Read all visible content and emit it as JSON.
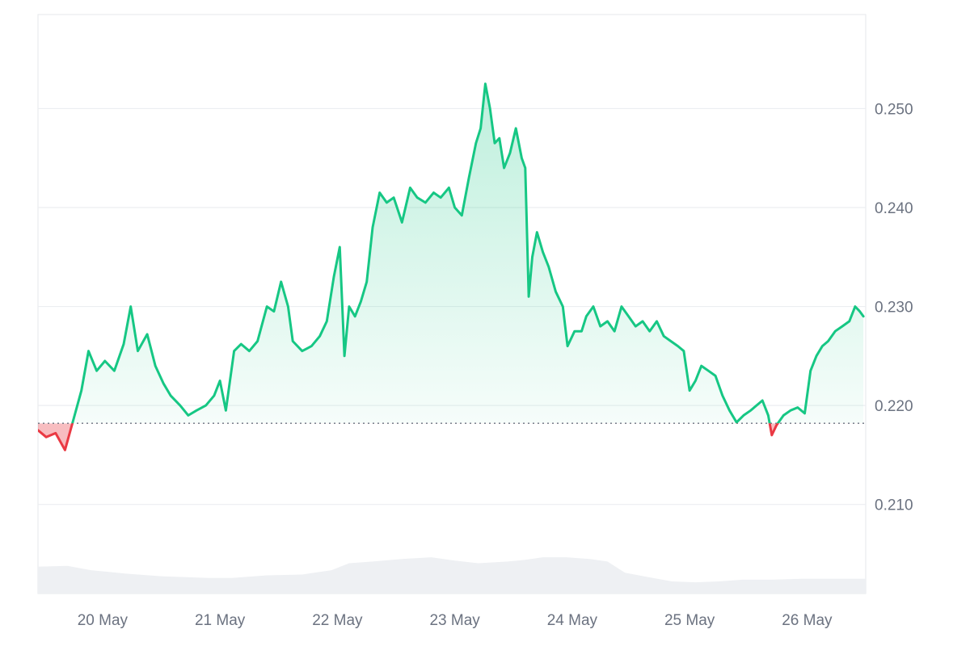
{
  "chart_data": {
    "type": "area",
    "title": "",
    "xlabel": "",
    "ylabel": "",
    "x_ticks": [
      "20 May",
      "21 May",
      "22 May",
      "23 May",
      "24 May",
      "25 May",
      "26 May"
    ],
    "y_ticks": [
      "0.210",
      "0.220",
      "0.230",
      "0.240",
      "0.250"
    ],
    "y_tick_values": [
      0.21,
      0.22,
      0.23,
      0.24,
      0.25
    ],
    "ylim": [
      0.201,
      0.2595
    ],
    "xlim_days": [
      19.45,
      26.5
    ],
    "grid": true,
    "y_axis_position": "right",
    "baseline": 0.2182,
    "colors": {
      "up_line": "#16c784",
      "up_fill": "#16c784",
      "down_line": "#ea3943",
      "down_fill": "#ea3943",
      "baseline": "#6b7280",
      "grid": "#eceef1",
      "frame": "#e5e7eb",
      "volume": "#eef0f3"
    },
    "series": [
      {
        "values": [
          [
            19.45,
            0.2175
          ],
          [
            19.52,
            0.2168
          ],
          [
            19.6,
            0.2172
          ],
          [
            19.68,
            0.2155
          ],
          [
            19.75,
            0.2185
          ],
          [
            19.82,
            0.2215
          ],
          [
            19.88,
            0.2255
          ],
          [
            19.95,
            0.2235
          ],
          [
            20.02,
            0.2245
          ],
          [
            20.1,
            0.2235
          ],
          [
            20.18,
            0.2262
          ],
          [
            20.24,
            0.23
          ],
          [
            20.3,
            0.2255
          ],
          [
            20.38,
            0.2272
          ],
          [
            20.45,
            0.224
          ],
          [
            20.52,
            0.2222
          ],
          [
            20.58,
            0.221
          ],
          [
            20.66,
            0.22
          ],
          [
            20.73,
            0.219
          ],
          [
            20.8,
            0.2195
          ],
          [
            20.88,
            0.22
          ],
          [
            20.95,
            0.221
          ],
          [
            21.0,
            0.2225
          ],
          [
            21.05,
            0.2195
          ],
          [
            21.12,
            0.2255
          ],
          [
            21.18,
            0.2262
          ],
          [
            21.25,
            0.2255
          ],
          [
            21.32,
            0.2265
          ],
          [
            21.4,
            0.23
          ],
          [
            21.46,
            0.2295
          ],
          [
            21.52,
            0.2325
          ],
          [
            21.58,
            0.23
          ],
          [
            21.62,
            0.2265
          ],
          [
            21.7,
            0.2255
          ],
          [
            21.78,
            0.226
          ],
          [
            21.85,
            0.227
          ],
          [
            21.91,
            0.2285
          ],
          [
            21.97,
            0.233
          ],
          [
            22.02,
            0.236
          ],
          [
            22.06,
            0.225
          ],
          [
            22.1,
            0.23
          ],
          [
            22.15,
            0.229
          ],
          [
            22.2,
            0.2305
          ],
          [
            22.25,
            0.2325
          ],
          [
            22.3,
            0.238
          ],
          [
            22.36,
            0.2415
          ],
          [
            22.42,
            0.2405
          ],
          [
            22.48,
            0.241
          ],
          [
            22.55,
            0.2385
          ],
          [
            22.62,
            0.242
          ],
          [
            22.68,
            0.241
          ],
          [
            22.75,
            0.2405
          ],
          [
            22.82,
            0.2415
          ],
          [
            22.88,
            0.241
          ],
          [
            22.95,
            0.242
          ],
          [
            23.0,
            0.24
          ],
          [
            23.06,
            0.2392
          ],
          [
            23.12,
            0.243
          ],
          [
            23.18,
            0.2465
          ],
          [
            23.22,
            0.248
          ],
          [
            23.26,
            0.2525
          ],
          [
            23.3,
            0.25
          ],
          [
            23.34,
            0.2465
          ],
          [
            23.38,
            0.247
          ],
          [
            23.42,
            0.244
          ],
          [
            23.47,
            0.2455
          ],
          [
            23.52,
            0.248
          ],
          [
            23.57,
            0.245
          ],
          [
            23.6,
            0.244
          ],
          [
            23.63,
            0.231
          ],
          [
            23.66,
            0.235
          ],
          [
            23.7,
            0.2375
          ],
          [
            23.75,
            0.2355
          ],
          [
            23.8,
            0.234
          ],
          [
            23.86,
            0.2315
          ],
          [
            23.92,
            0.23
          ],
          [
            23.96,
            0.226
          ],
          [
            24.02,
            0.2275
          ],
          [
            24.08,
            0.2275
          ],
          [
            24.12,
            0.229
          ],
          [
            24.18,
            0.23
          ],
          [
            24.24,
            0.228
          ],
          [
            24.3,
            0.2285
          ],
          [
            24.36,
            0.2275
          ],
          [
            24.42,
            0.23
          ],
          [
            24.48,
            0.229
          ],
          [
            24.54,
            0.228
          ],
          [
            24.6,
            0.2285
          ],
          [
            24.66,
            0.2275
          ],
          [
            24.72,
            0.2285
          ],
          [
            24.78,
            0.227
          ],
          [
            24.84,
            0.2265
          ],
          [
            24.9,
            0.226
          ],
          [
            24.95,
            0.2255
          ],
          [
            25.0,
            0.2215
          ],
          [
            25.05,
            0.2225
          ],
          [
            25.1,
            0.224
          ],
          [
            25.16,
            0.2235
          ],
          [
            25.22,
            0.223
          ],
          [
            25.28,
            0.221
          ],
          [
            25.34,
            0.2195
          ],
          [
            25.4,
            0.2183
          ],
          [
            25.46,
            0.219
          ],
          [
            25.52,
            0.2195
          ],
          [
            25.57,
            0.22
          ],
          [
            25.62,
            0.2205
          ],
          [
            25.67,
            0.219
          ],
          [
            25.7,
            0.217
          ],
          [
            25.74,
            0.218
          ],
          [
            25.8,
            0.219
          ],
          [
            25.86,
            0.2195
          ],
          [
            25.92,
            0.2198
          ],
          [
            25.98,
            0.2192
          ],
          [
            26.03,
            0.2235
          ],
          [
            26.08,
            0.225
          ],
          [
            26.13,
            0.226
          ],
          [
            26.18,
            0.2265
          ],
          [
            26.24,
            0.2275
          ],
          [
            26.3,
            0.228
          ],
          [
            26.36,
            0.2285
          ],
          [
            26.41,
            0.23
          ],
          [
            26.45,
            0.2295
          ],
          [
            26.48,
            0.229
          ]
        ]
      }
    ],
    "volume": [
      [
        19.45,
        0.31
      ],
      [
        19.7,
        0.32
      ],
      [
        19.9,
        0.27
      ],
      [
        20.2,
        0.23
      ],
      [
        20.5,
        0.2
      ],
      [
        20.9,
        0.18
      ],
      [
        21.1,
        0.18
      ],
      [
        21.4,
        0.21
      ],
      [
        21.7,
        0.22
      ],
      [
        21.95,
        0.27
      ],
      [
        22.1,
        0.35
      ],
      [
        22.3,
        0.37
      ],
      [
        22.55,
        0.4
      ],
      [
        22.8,
        0.42
      ],
      [
        23.0,
        0.38
      ],
      [
        23.2,
        0.35
      ],
      [
        23.45,
        0.37
      ],
      [
        23.6,
        0.39
      ],
      [
        23.75,
        0.42
      ],
      [
        23.95,
        0.42
      ],
      [
        24.15,
        0.4
      ],
      [
        24.3,
        0.37
      ],
      [
        24.45,
        0.24
      ],
      [
        24.65,
        0.19
      ],
      [
        24.85,
        0.14
      ],
      [
        25.05,
        0.13
      ],
      [
        25.25,
        0.14
      ],
      [
        25.45,
        0.16
      ],
      [
        25.7,
        0.16
      ],
      [
        25.95,
        0.17
      ],
      [
        26.2,
        0.17
      ],
      [
        26.5,
        0.17
      ]
    ]
  }
}
